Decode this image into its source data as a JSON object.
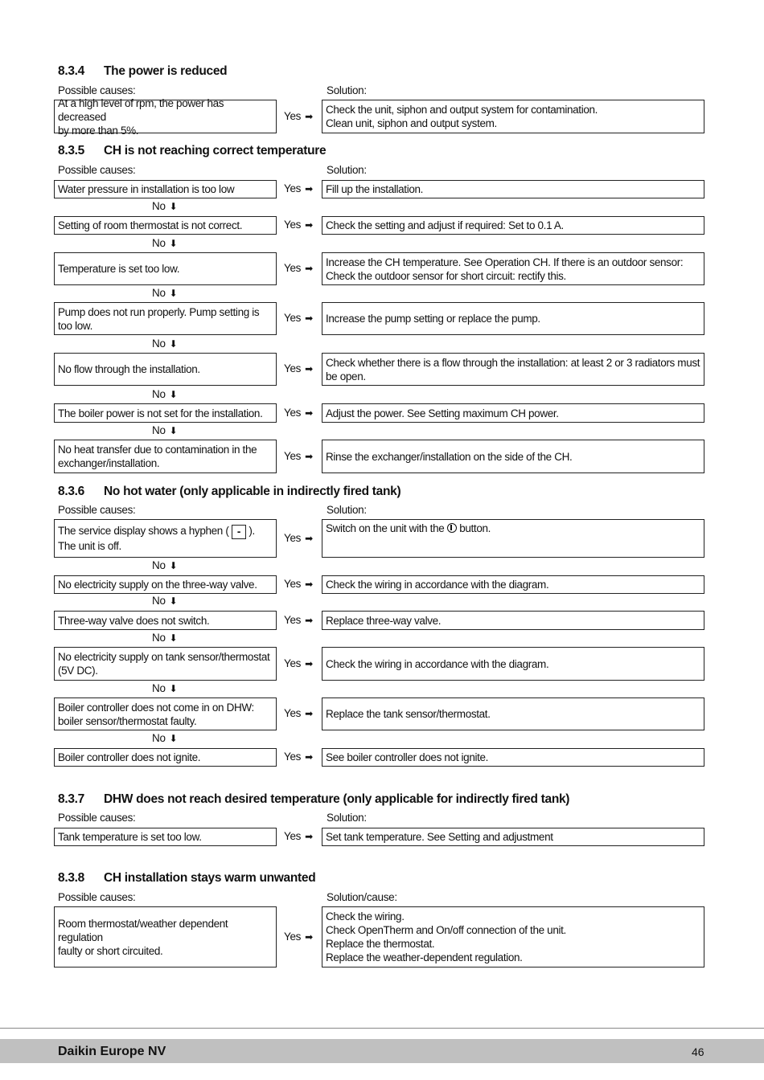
{
  "sections": [
    {
      "number": "8.3.4",
      "title": "The power is reduced",
      "causes_label": "Possible causes:",
      "solution_label": "Solution:",
      "rows": [
        {
          "cause": "At a high level of rpm, the power has decreased\nby more than 5%.",
          "yes": "Yes",
          "solution": "Check the unit, siphon and output system for contamination.\nClean unit, siphon and output system."
        }
      ]
    },
    {
      "number": "8.3.5",
      "title": "CH is not reaching correct temperature",
      "causes_label": "Possible causes:",
      "solution_label": "Solution:",
      "rows": [
        {
          "cause": "Water pressure in installation is too low",
          "yes": "Yes",
          "solution": "Fill up the installation.",
          "no": "No"
        },
        {
          "cause": "Setting of room thermostat is not correct.",
          "yes": "Yes",
          "solution": "Check the setting and adjust if required: Set to 0.1 A.",
          "no": "No"
        },
        {
          "cause": "Temperature is set too low.",
          "yes": "Yes",
          "solution": "Increase the CH temperature. See Operation CH. If there is an outdoor sensor:\nCheck the outdoor sensor for short circuit: rectify this.",
          "no": "No"
        },
        {
          "cause": "Pump does not run properly. Pump setting is\ntoo low.",
          "yes": "Yes",
          "solution": "Increase the pump setting or replace the pump.",
          "no": "No"
        },
        {
          "cause": "No flow through the installation.",
          "yes": "Yes",
          "solution": "Check whether there is a flow through the installation: at least 2 or 3 radiators must\nbe open.",
          "no": "No"
        },
        {
          "cause": "The boiler power is not set for the installation.",
          "yes": "Yes",
          "solution": "Adjust the power. See Setting maximum CH power.",
          "no": "No"
        },
        {
          "cause": "No heat transfer due to contamination in the\nexchanger/installation.",
          "yes": "Yes",
          "solution": "Rinse the exchanger/installation on the side of the CH."
        }
      ]
    },
    {
      "number": "8.3.6",
      "title": "No hot water (only applicable in indirectly fired tank)",
      "causes_label": "Possible causes:",
      "solution_label": "Solution:",
      "rows": [
        {
          "cause_pre": "The service display shows a hyphen ( ",
          "cause_symbol": "-",
          "cause_post": " ).\nThe unit is off.",
          "yes": "Yes",
          "solution_pre": "Switch on the unit with the ",
          "solution_icon": "power-button-icon",
          "solution_post": " button.",
          "no": "No"
        },
        {
          "cause": "No electricity supply on the three-way valve.",
          "yes": "Yes",
          "solution": "Check the wiring in accordance with the diagram.",
          "no": "No"
        },
        {
          "cause": "Three-way valve does not switch.",
          "yes": "Yes",
          "solution": "Replace three-way valve.",
          "no": "No"
        },
        {
          "cause": "No electricity supply on tank sensor/thermostat\n(5V DC).",
          "yes": "Yes",
          "solution": "Check the wiring in accordance with the diagram.",
          "no": "No"
        },
        {
          "cause": "Boiler controller does not come in on DHW:\nboiler sensor/thermostat faulty.",
          "yes": "Yes",
          "solution": "Replace the tank sensor/thermostat.",
          "no": "No"
        },
        {
          "cause": "Boiler controller does not ignite.",
          "yes": "Yes",
          "solution": "See boiler controller does not ignite."
        }
      ]
    },
    {
      "number": "8.3.7",
      "title": "DHW does not reach desired temperature (only applicable for indirectly fired tank)",
      "causes_label": "Possible causes:",
      "solution_label": "Solution:",
      "rows": [
        {
          "cause": "Tank temperature is set too low.",
          "yes": "Yes",
          "solution": "Set tank temperature. See   Setting and adjustment"
        }
      ]
    },
    {
      "number": "8.3.8",
      "title": "CH installation stays warm unwanted",
      "causes_label": "Possible causes:",
      "solution_label": "Solution/cause:",
      "rows": [
        {
          "cause": "Room thermostat/weather dependent regulation\nfaulty or short circuited.",
          "yes": "Yes",
          "solution": "Check the wiring.\nCheck  OpenTherm and On/off connection of the unit.\nReplace the thermostat.\nReplace the weather-dependent regulation."
        }
      ]
    }
  ],
  "footer": {
    "company": "Daikin Europe NV",
    "page": "46"
  }
}
